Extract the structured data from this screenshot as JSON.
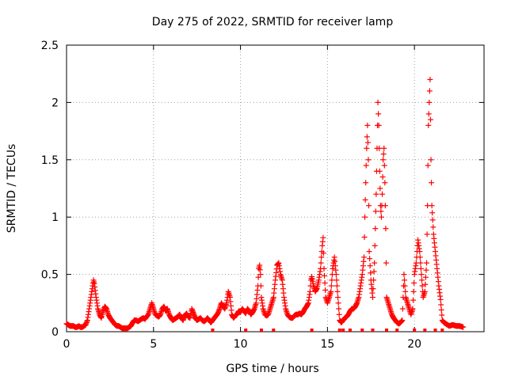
{
  "chart_data": {
    "type": "scatter",
    "title": "Day 275 of 2022, SRMTID for receiver lamp",
    "xlabel": "GPS time / hours",
    "ylabel": "SRMTID / TECUs",
    "xlim": [
      0,
      24
    ],
    "ylim": [
      0,
      2.5
    ],
    "xticks": [
      0,
      5,
      10,
      15,
      20
    ],
    "yticks": [
      0,
      0.5,
      1,
      1.5,
      2,
      2.5
    ],
    "xtick_labels": [
      "0",
      "5",
      "10",
      "15",
      "20"
    ],
    "ytick_labels": [
      "0",
      "0.5",
      "1",
      "1.5",
      "2",
      "2.5"
    ],
    "grid": true,
    "marker": "+",
    "color": "#ff0000",
    "series": [
      {
        "name": "SRMTID",
        "points": [
          [
            0.0,
            0.07
          ],
          [
            0.1,
            0.06
          ],
          [
            0.2,
            0.05
          ],
          [
            0.3,
            0.05
          ],
          [
            0.4,
            0.05
          ],
          [
            0.5,
            0.04
          ],
          [
            0.6,
            0.04
          ],
          [
            0.7,
            0.05
          ],
          [
            0.8,
            0.04
          ],
          [
            0.9,
            0.04
          ],
          [
            1.0,
            0.05
          ],
          [
            1.1,
            0.06
          ],
          [
            1.2,
            0.1
          ],
          [
            1.3,
            0.2
          ],
          [
            1.4,
            0.3
          ],
          [
            1.5,
            0.4
          ],
          [
            1.55,
            0.45
          ],
          [
            1.6,
            0.42
          ],
          [
            1.7,
            0.3
          ],
          [
            1.8,
            0.2
          ],
          [
            1.9,
            0.15
          ],
          [
            2.0,
            0.12
          ],
          [
            2.1,
            0.18
          ],
          [
            2.2,
            0.22
          ],
          [
            2.3,
            0.2
          ],
          [
            2.4,
            0.15
          ],
          [
            2.5,
            0.12
          ],
          [
            2.6,
            0.1
          ],
          [
            2.7,
            0.08
          ],
          [
            2.8,
            0.06
          ],
          [
            2.9,
            0.05
          ],
          [
            3.0,
            0.05
          ],
          [
            3.1,
            0.04
          ],
          [
            3.2,
            0.03
          ],
          [
            3.3,
            0.03
          ],
          [
            3.4,
            0.03
          ],
          [
            3.5,
            0.03
          ],
          [
            3.6,
            0.04
          ],
          [
            3.7,
            0.05
          ],
          [
            3.8,
            0.08
          ],
          [
            3.9,
            0.1
          ],
          [
            4.0,
            0.1
          ],
          [
            4.1,
            0.09
          ],
          [
            4.2,
            0.1
          ],
          [
            4.3,
            0.11
          ],
          [
            4.4,
            0.12
          ],
          [
            4.5,
            0.11
          ],
          [
            4.6,
            0.13
          ],
          [
            4.7,
            0.15
          ],
          [
            4.8,
            0.2
          ],
          [
            4.9,
            0.25
          ],
          [
            5.0,
            0.2
          ],
          [
            5.1,
            0.15
          ],
          [
            5.2,
            0.14
          ],
          [
            5.3,
            0.13
          ],
          [
            5.4,
            0.15
          ],
          [
            5.5,
            0.2
          ],
          [
            5.6,
            0.22
          ],
          [
            5.7,
            0.18
          ],
          [
            5.8,
            0.2
          ],
          [
            5.9,
            0.15
          ],
          [
            6.0,
            0.12
          ],
          [
            6.1,
            0.1
          ],
          [
            6.2,
            0.11
          ],
          [
            6.3,
            0.12
          ],
          [
            6.4,
            0.13
          ],
          [
            6.5,
            0.15
          ],
          [
            6.6,
            0.12
          ],
          [
            6.7,
            0.1
          ],
          [
            6.8,
            0.14
          ],
          [
            6.9,
            0.16
          ],
          [
            7.0,
            0.13
          ],
          [
            7.1,
            0.12
          ],
          [
            7.2,
            0.2
          ],
          [
            7.3,
            0.16
          ],
          [
            7.4,
            0.12
          ],
          [
            7.5,
            0.1
          ],
          [
            7.6,
            0.11
          ],
          [
            7.7,
            0.12
          ],
          [
            7.8,
            0.1
          ],
          [
            7.9,
            0.09
          ],
          [
            8.0,
            0.1
          ],
          [
            8.1,
            0.12
          ],
          [
            8.2,
            0.1
          ],
          [
            8.3,
            0.08
          ],
          [
            8.4,
            0.1
          ],
          [
            8.5,
            0.12
          ],
          [
            8.6,
            0.14
          ],
          [
            8.7,
            0.16
          ],
          [
            8.8,
            0.2
          ],
          [
            8.9,
            0.25
          ],
          [
            9.0,
            0.22
          ],
          [
            9.1,
            0.2
          ],
          [
            9.2,
            0.25
          ],
          [
            9.3,
            0.35
          ],
          [
            9.4,
            0.3
          ],
          [
            9.5,
            0.15
          ],
          [
            9.6,
            0.12
          ],
          [
            9.7,
            0.14
          ],
          [
            9.8,
            0.15
          ],
          [
            9.9,
            0.18
          ],
          [
            10.0,
            0.17
          ],
          [
            10.1,
            0.2
          ],
          [
            10.2,
            0.18
          ],
          [
            10.3,
            0.16
          ],
          [
            10.4,
            0.2
          ],
          [
            10.5,
            0.18
          ],
          [
            10.6,
            0.15
          ],
          [
            10.7,
            0.17
          ],
          [
            10.8,
            0.2
          ],
          [
            10.9,
            0.25
          ],
          [
            11.0,
            0.4
          ],
          [
            11.05,
            0.55
          ],
          [
            11.1,
            0.58
          ],
          [
            11.15,
            0.5
          ],
          [
            11.2,
            0.3
          ],
          [
            11.3,
            0.2
          ],
          [
            11.4,
            0.15
          ],
          [
            11.5,
            0.14
          ],
          [
            11.6,
            0.15
          ],
          [
            11.7,
            0.2
          ],
          [
            11.8,
            0.25
          ],
          [
            11.9,
            0.3
          ],
          [
            12.0,
            0.45
          ],
          [
            12.1,
            0.58
          ],
          [
            12.2,
            0.6
          ],
          [
            12.3,
            0.5
          ],
          [
            12.4,
            0.45
          ],
          [
            12.5,
            0.3
          ],
          [
            12.6,
            0.2
          ],
          [
            12.7,
            0.15
          ],
          [
            12.8,
            0.13
          ],
          [
            12.9,
            0.12
          ],
          [
            13.0,
            0.12
          ],
          [
            13.1,
            0.14
          ],
          [
            13.2,
            0.15
          ],
          [
            13.3,
            0.15
          ],
          [
            13.4,
            0.16
          ],
          [
            13.5,
            0.15
          ],
          [
            13.6,
            0.17
          ],
          [
            13.7,
            0.2
          ],
          [
            13.8,
            0.22
          ],
          [
            13.9,
            0.25
          ],
          [
            14.0,
            0.35
          ],
          [
            14.05,
            0.45
          ],
          [
            14.1,
            0.48
          ],
          [
            14.2,
            0.4
          ],
          [
            14.3,
            0.35
          ],
          [
            14.4,
            0.38
          ],
          [
            14.5,
            0.45
          ],
          [
            14.6,
            0.55
          ],
          [
            14.7,
            0.75
          ],
          [
            14.75,
            0.82
          ],
          [
            14.8,
            0.55
          ],
          [
            14.9,
            0.3
          ],
          [
            15.0,
            0.25
          ],
          [
            15.1,
            0.3
          ],
          [
            15.2,
            0.35
          ],
          [
            15.3,
            0.55
          ],
          [
            15.4,
            0.65
          ],
          [
            15.5,
            0.5
          ],
          [
            15.6,
            0.3
          ],
          [
            15.7,
            0.1
          ],
          [
            15.8,
            0.08
          ],
          [
            15.9,
            0.1
          ],
          [
            16.0,
            0.12
          ],
          [
            16.1,
            0.13
          ],
          [
            16.2,
            0.15
          ],
          [
            16.3,
            0.18
          ],
          [
            16.4,
            0.2
          ],
          [
            16.5,
            0.2
          ],
          [
            16.6,
            0.22
          ],
          [
            16.7,
            0.25
          ],
          [
            16.8,
            0.3
          ],
          [
            16.9,
            0.4
          ],
          [
            17.0,
            0.5
          ],
          [
            17.1,
            0.65
          ],
          [
            17.15,
            1.0
          ],
          [
            17.2,
            1.3
          ],
          [
            17.25,
            1.6
          ],
          [
            17.3,
            1.8
          ],
          [
            17.35,
            1.5
          ],
          [
            17.4,
            0.7
          ],
          [
            17.5,
            0.45
          ],
          [
            17.6,
            0.3
          ],
          [
            17.7,
            0.6
          ],
          [
            17.8,
            1.2
          ],
          [
            17.85,
            1.6
          ],
          [
            17.9,
            2.0
          ],
          [
            17.95,
            1.8
          ],
          [
            18.0,
            1.4
          ],
          [
            18.05,
            1.1
          ],
          [
            18.1,
            1.0
          ],
          [
            18.15,
            1.2
          ],
          [
            18.2,
            1.5
          ],
          [
            18.25,
            1.6
          ],
          [
            18.3,
            1.3
          ],
          [
            18.35,
            0.9
          ],
          [
            18.4,
            0.3
          ],
          [
            18.5,
            0.25
          ],
          [
            18.6,
            0.2
          ],
          [
            18.7,
            0.15
          ],
          [
            18.8,
            0.12
          ],
          [
            18.9,
            0.1
          ],
          [
            19.0,
            0.08
          ],
          [
            19.1,
            0.07
          ],
          [
            19.2,
            0.08
          ],
          [
            19.3,
            0.1
          ],
          [
            19.4,
            0.5
          ],
          [
            19.5,
            0.3
          ],
          [
            19.6,
            0.25
          ],
          [
            19.7,
            0.2
          ],
          [
            19.8,
            0.15
          ],
          [
            19.9,
            0.2
          ],
          [
            20.0,
            0.5
          ],
          [
            20.1,
            0.6
          ],
          [
            20.2,
            0.8
          ],
          [
            20.3,
            0.7
          ],
          [
            20.4,
            0.5
          ],
          [
            20.5,
            0.3
          ],
          [
            20.6,
            0.35
          ],
          [
            20.7,
            0.6
          ],
          [
            20.75,
            1.1
          ],
          [
            20.8,
            1.8
          ],
          [
            20.85,
            2.0
          ],
          [
            20.9,
            2.2
          ],
          [
            20.95,
            1.5
          ],
          [
            21.0,
            1.1
          ],
          [
            21.1,
            0.85
          ],
          [
            21.2,
            0.7
          ],
          [
            21.3,
            0.55
          ],
          [
            21.4,
            0.4
          ],
          [
            21.5,
            0.28
          ],
          [
            21.6,
            0.1
          ],
          [
            21.7,
            0.08
          ],
          [
            21.8,
            0.07
          ],
          [
            21.9,
            0.06
          ],
          [
            22.0,
            0.05
          ],
          [
            22.2,
            0.06
          ],
          [
            22.4,
            0.05
          ],
          [
            22.6,
            0.05
          ],
          [
            22.8,
            0.04
          ]
        ]
      }
    ],
    "baseline_marks": [
      8.4,
      10.3,
      11.2,
      11.9,
      14.1,
      15.7,
      15.9,
      16.3,
      17.0,
      17.6,
      18.4,
      19.0,
      20.0,
      20.6,
      21.2,
      21.6
    ]
  }
}
